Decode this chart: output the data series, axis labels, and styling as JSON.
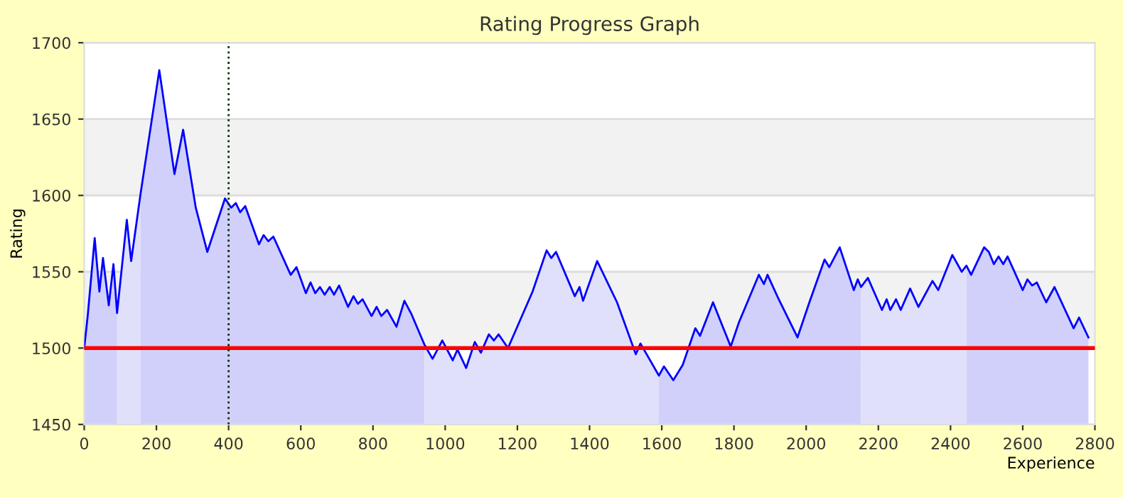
{
  "chart_data": {
    "type": "area",
    "title": "Rating Progress Graph",
    "xlabel": "Experience",
    "ylabel": "Rating",
    "xlim": [
      0,
      2800
    ],
    "xticks": [
      0,
      200,
      400,
      600,
      800,
      1000,
      1200,
      1400,
      1600,
      1800,
      2000,
      2200,
      2400,
      2600,
      2800
    ],
    "ylim": [
      1450,
      1700
    ],
    "yticks": [
      1450,
      1500,
      1550,
      1600,
      1650,
      1700
    ],
    "grid": "y",
    "legend": false,
    "bands": [
      {
        "axis": "y",
        "from": 1500,
        "to": 1550,
        "color": "#f2f2f2"
      },
      {
        "axis": "y",
        "from": 1600,
        "to": 1650,
        "color": "#f2f2f2"
      }
    ],
    "ref_lines": [
      {
        "axis": "y",
        "value": 1500,
        "color": "#ff0000",
        "line_style": "solid"
      },
      {
        "axis": "x",
        "value": 400,
        "color": "#003300",
        "line_style": "dotted"
      }
    ],
    "series": [
      {
        "color": "#d0d0fa",
        "x": [
          0,
          10,
          29,
          42,
          52,
          68,
          81,
          91
        ],
        "values": [
          1500,
          1522,
          1572,
          1537,
          1559,
          1528,
          1555,
          1523
        ]
      },
      {
        "color": "#e0e0fa",
        "x": [
          91,
          118,
          130,
          156
        ],
        "values": [
          1523,
          1584,
          1557,
          1601
        ]
      },
      {
        "color": "#d0d0fa",
        "x": [
          156,
          208,
          250,
          274,
          309,
          341,
          390,
          407,
          420,
          432,
          446,
          484,
          497,
          510,
          524,
          572,
          588,
          614,
          627,
          640,
          653,
          666,
          680,
          692,
          706,
          731,
          746,
          758,
          771,
          796,
          810,
          823,
          839,
          865,
          887,
          907,
          943
        ],
        "values": [
          1601,
          1682,
          1614,
          1643,
          1592,
          1563,
          1598,
          1592,
          1595,
          1589,
          1593,
          1568,
          1574,
          1570,
          1573,
          1548,
          1553,
          1536,
          1543,
          1536,
          1540,
          1535,
          1540,
          1535,
          1541,
          1527,
          1534,
          1529,
          1532,
          1521,
          1527,
          1521,
          1525,
          1514,
          1531,
          1522,
          1502
        ]
      },
      {
        "color": "#e0e0fa",
        "x": [
          943,
          965,
          992,
          1021,
          1034,
          1058,
          1082,
          1099,
          1121,
          1135,
          1148,
          1174,
          1242,
          1281,
          1294,
          1307,
          1359,
          1372,
          1382,
          1421,
          1476,
          1502,
          1528,
          1541,
          1592
        ],
        "values": [
          1502,
          1493,
          1505,
          1492,
          1499,
          1487,
          1504,
          1497,
          1509,
          1505,
          1509,
          1500,
          1537,
          1564,
          1559,
          1563,
          1534,
          1540,
          1531,
          1557,
          1530,
          1513,
          1496,
          1503,
          1482
        ]
      },
      {
        "color": "#d0d0fa",
        "x": [
          1592,
          1606,
          1632,
          1658,
          1693,
          1706,
          1742,
          1791,
          1814,
          1869,
          1883,
          1893,
          1924,
          1976,
          2009,
          2051,
          2064,
          2093,
          2132,
          2143,
          2152
        ],
        "values": [
          1482,
          1488,
          1479,
          1489,
          1513,
          1508,
          1530,
          1501,
          1517,
          1548,
          1542,
          1548,
          1532,
          1507,
          1530,
          1558,
          1553,
          1566,
          1538,
          1545,
          1540
        ]
      },
      {
        "color": "#e0e0fa",
        "x": [
          2152,
          2171,
          2210,
          2223,
          2233,
          2249,
          2262,
          2288,
          2311,
          2350,
          2366,
          2405,
          2431,
          2444
        ],
        "values": [
          1540,
          1546,
          1525,
          1532,
          1525,
          1532,
          1525,
          1539,
          1527,
          1544,
          1538,
          1561,
          1550,
          1554
        ]
      },
      {
        "color": "#d0d0fa",
        "x": [
          2444,
          2457,
          2493,
          2506,
          2520,
          2533,
          2546,
          2558,
          2600,
          2613,
          2626,
          2639,
          2665,
          2688,
          2741,
          2756,
          2782
        ],
        "values": [
          1554,
          1548,
          1566,
          1563,
          1555,
          1560,
          1555,
          1560,
          1538,
          1545,
          1541,
          1543,
          1530,
          1540,
          1513,
          1520,
          1507
        ]
      },
      {
        "type": "line",
        "color": "#0000ff",
        "x": [
          0,
          10,
          29,
          42,
          52,
          68,
          81,
          91,
          118,
          130,
          156,
          208,
          250,
          274,
          309,
          341,
          390,
          407,
          420,
          432,
          446,
          484,
          497,
          510,
          524,
          572,
          588,
          614,
          627,
          640,
          653,
          666,
          680,
          692,
          706,
          731,
          746,
          758,
          771,
          796,
          810,
          823,
          839,
          865,
          887,
          907,
          943,
          965,
          992,
          1021,
          1034,
          1058,
          1082,
          1099,
          1121,
          1135,
          1148,
          1174,
          1242,
          1281,
          1294,
          1307,
          1359,
          1372,
          1382,
          1421,
          1476,
          1502,
          1528,
          1541,
          1592,
          1606,
          1632,
          1658,
          1693,
          1706,
          1742,
          1791,
          1814,
          1869,
          1883,
          1893,
          1924,
          1976,
          2009,
          2051,
          2064,
          2093,
          2132,
          2143,
          2152,
          2171,
          2210,
          2223,
          2233,
          2249,
          2262,
          2288,
          2311,
          2350,
          2366,
          2405,
          2431,
          2444,
          2457,
          2493,
          2506,
          2520,
          2533,
          2546,
          2558,
          2600,
          2613,
          2626,
          2639,
          2665,
          2688,
          2741,
          2756,
          2782
        ],
        "values": [
          1500,
          1522,
          1572,
          1537,
          1559,
          1528,
          1555,
          1523,
          1584,
          1557,
          1601,
          1682,
          1614,
          1643,
          1592,
          1563,
          1598,
          1592,
          1595,
          1589,
          1593,
          1568,
          1574,
          1570,
          1573,
          1548,
          1553,
          1536,
          1543,
          1536,
          1540,
          1535,
          1540,
          1535,
          1541,
          1527,
          1534,
          1529,
          1532,
          1521,
          1527,
          1521,
          1525,
          1514,
          1531,
          1522,
          1502,
          1493,
          1505,
          1492,
          1499,
          1487,
          1504,
          1497,
          1509,
          1505,
          1509,
          1500,
          1537,
          1564,
          1559,
          1563,
          1534,
          1540,
          1531,
          1557,
          1530,
          1513,
          1496,
          1503,
          1482,
          1488,
          1479,
          1489,
          1513,
          1508,
          1530,
          1501,
          1517,
          1548,
          1542,
          1548,
          1532,
          1507,
          1530,
          1558,
          1553,
          1566,
          1538,
          1545,
          1540,
          1546,
          1525,
          1532,
          1525,
          1532,
          1525,
          1539,
          1527,
          1544,
          1538,
          1561,
          1550,
          1554,
          1548,
          1566,
          1563,
          1555,
          1560,
          1555,
          1560,
          1538,
          1545,
          1541,
          1543,
          1530,
          1540,
          1513,
          1520,
          1507
        ]
      }
    ]
  }
}
